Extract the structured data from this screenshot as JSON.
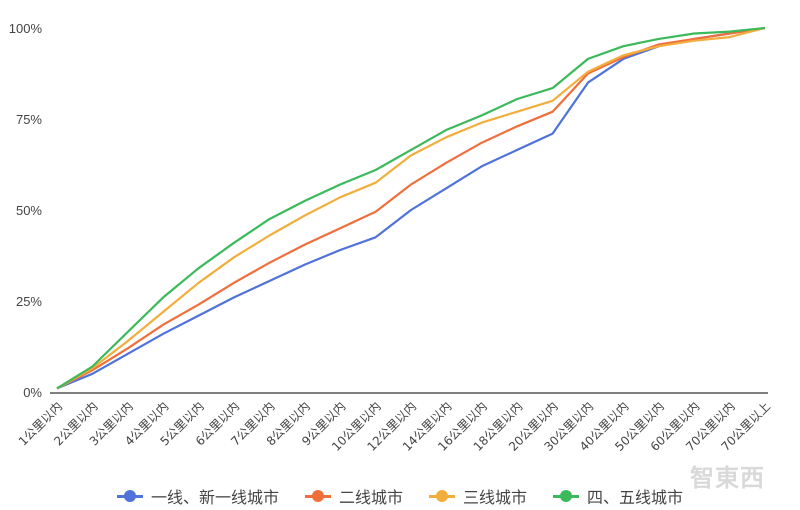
{
  "chart_data": {
    "type": "line",
    "title": "",
    "xlabel": "",
    "ylabel": "",
    "ylim": [
      0,
      100
    ],
    "y_ticks": [
      "0%",
      "25%",
      "50%",
      "75%",
      "100%"
    ],
    "y_tick_values": [
      0,
      25,
      50,
      75,
      100
    ],
    "grid": false,
    "legend_position": "bottom",
    "categories": [
      "1公里以内",
      "2公里以内",
      "3公里以内",
      "4公里以内",
      "5公里以内",
      "6公里以内",
      "7公里以内",
      "8公里以内",
      "9公里以内",
      "10公里以内",
      "12公里以内",
      "14公里以内",
      "16公里以内",
      "18公里以内",
      "20公里以内",
      "30公里以内",
      "40公里以内",
      "50公里以内",
      "60公里以内",
      "70公里以内",
      "70公里以上"
    ],
    "series": [
      {
        "name": "一线、新一线城市",
        "color": "#4f73d9",
        "values": [
          1,
          5,
          10.5,
          16,
          21,
          26,
          30.5,
          35,
          39,
          42.5,
          50,
          56,
          62,
          66.5,
          71,
          85,
          91.5,
          95,
          97,
          98.5,
          100
        ]
      },
      {
        "name": "二线城市",
        "color": "#ef6f3c",
        "values": [
          1,
          6,
          12,
          18.5,
          24,
          30,
          35.5,
          40.5,
          45,
          49.5,
          57,
          63,
          68.5,
          73,
          77,
          87.5,
          92,
          95.5,
          97,
          98.5,
          100
        ]
      },
      {
        "name": "三线城市",
        "color": "#f2ae3d",
        "values": [
          1,
          6.5,
          14,
          22,
          30,
          37,
          43,
          48.5,
          53.5,
          57.5,
          65,
          70,
          74,
          77,
          80,
          88,
          92.5,
          95,
          96.5,
          97.5,
          100
        ]
      },
      {
        "name": "四、五线城市",
        "color": "#3cb95a",
        "values": [
          1,
          7,
          16.5,
          26,
          34,
          41,
          47.5,
          52.5,
          57,
          61,
          66.5,
          72,
          76,
          80.5,
          83.5,
          91.5,
          95,
          97,
          98.5,
          99,
          100
        ]
      }
    ]
  },
  "watermark": "智东西"
}
